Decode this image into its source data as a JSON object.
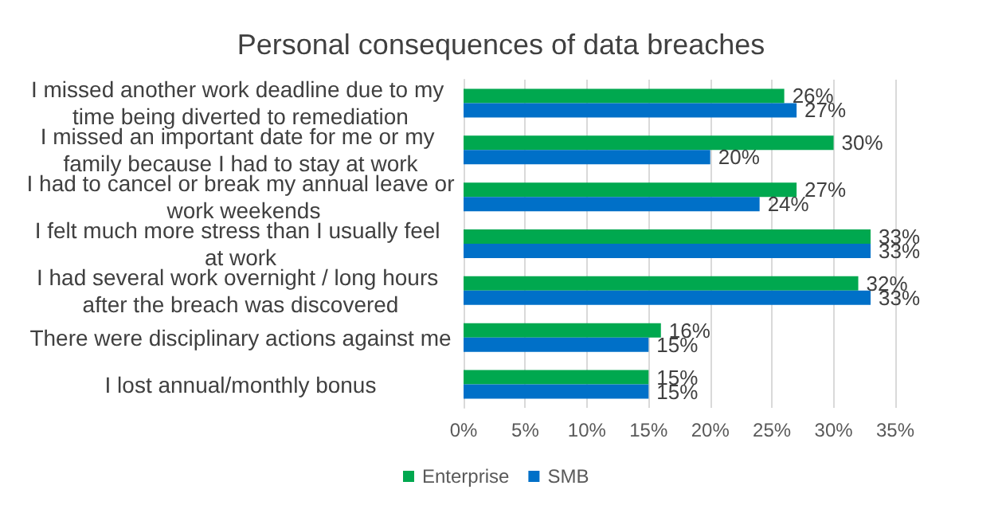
{
  "chart_data": {
    "type": "bar",
    "orientation": "horizontal",
    "title": "Personal consequences of data breaches",
    "categories": [
      "I missed another work deadline due to my time being diverted to remediation",
      "I missed an important date for me or my family because I had to stay at work",
      "I had to cancel or break my annual leave or work weekends",
      "I felt much more stress than I usually feel at work",
      "I had several work overnight / long hours after the breach was discovered",
      "There were disciplinary actions against me",
      "I lost annual/monthly bonus"
    ],
    "series": [
      {
        "name": "Enterprise",
        "color": "#00a84f",
        "values": [
          26,
          30,
          27,
          33,
          32,
          16,
          15
        ],
        "value_labels": [
          "26%",
          "30%",
          "27%",
          "33%",
          "32%",
          "16%",
          "15%"
        ]
      },
      {
        "name": "SMB",
        "color": "#0070c8",
        "values": [
          27,
          20,
          24,
          33,
          33,
          15,
          15
        ],
        "value_labels": [
          "27%",
          "20%",
          "24%",
          "33%",
          "33%",
          "15%",
          "15%"
        ]
      }
    ],
    "xlim": [
      0,
      35
    ],
    "xticks": [
      {
        "value": 0,
        "label": "0%"
      },
      {
        "value": 5,
        "label": "5%"
      },
      {
        "value": 10,
        "label": "10%"
      },
      {
        "value": 15,
        "label": "15%"
      },
      {
        "value": 20,
        "label": "20%"
      },
      {
        "value": 25,
        "label": "25%"
      },
      {
        "value": 30,
        "label": "30%"
      },
      {
        "value": 35,
        "label": "35%"
      }
    ],
    "grid": "x",
    "legend": "bottom left"
  }
}
